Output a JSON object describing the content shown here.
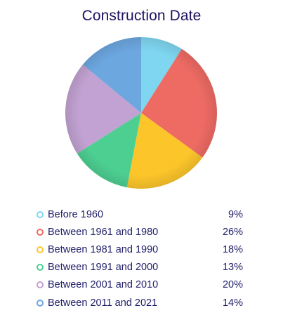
{
  "chart_data": {
    "type": "pie",
    "title": "Construction Date",
    "legend_position": "bottom",
    "slices": [
      {
        "label": "Before 1960",
        "value": 9,
        "display": "9%",
        "color": "#7fd6f0"
      },
      {
        "label": "Between 1961 and 1980",
        "value": 26,
        "display": "26%",
        "color": "#ee6b64"
      },
      {
        "label": "Between 1981 and 1990",
        "value": 18,
        "display": "18%",
        "color": "#fcc52a"
      },
      {
        "label": "Between 1991 and 2000",
        "value": 13,
        "display": "13%",
        "color": "#4dcf92"
      },
      {
        "label": "Between 2001 and 2010",
        "value": 20,
        "display": "20%",
        "color": "#c2a2d2"
      },
      {
        "label": "Between 2011 and 2021",
        "value": 14,
        "display": "14%",
        "color": "#6ca7e0"
      }
    ]
  }
}
